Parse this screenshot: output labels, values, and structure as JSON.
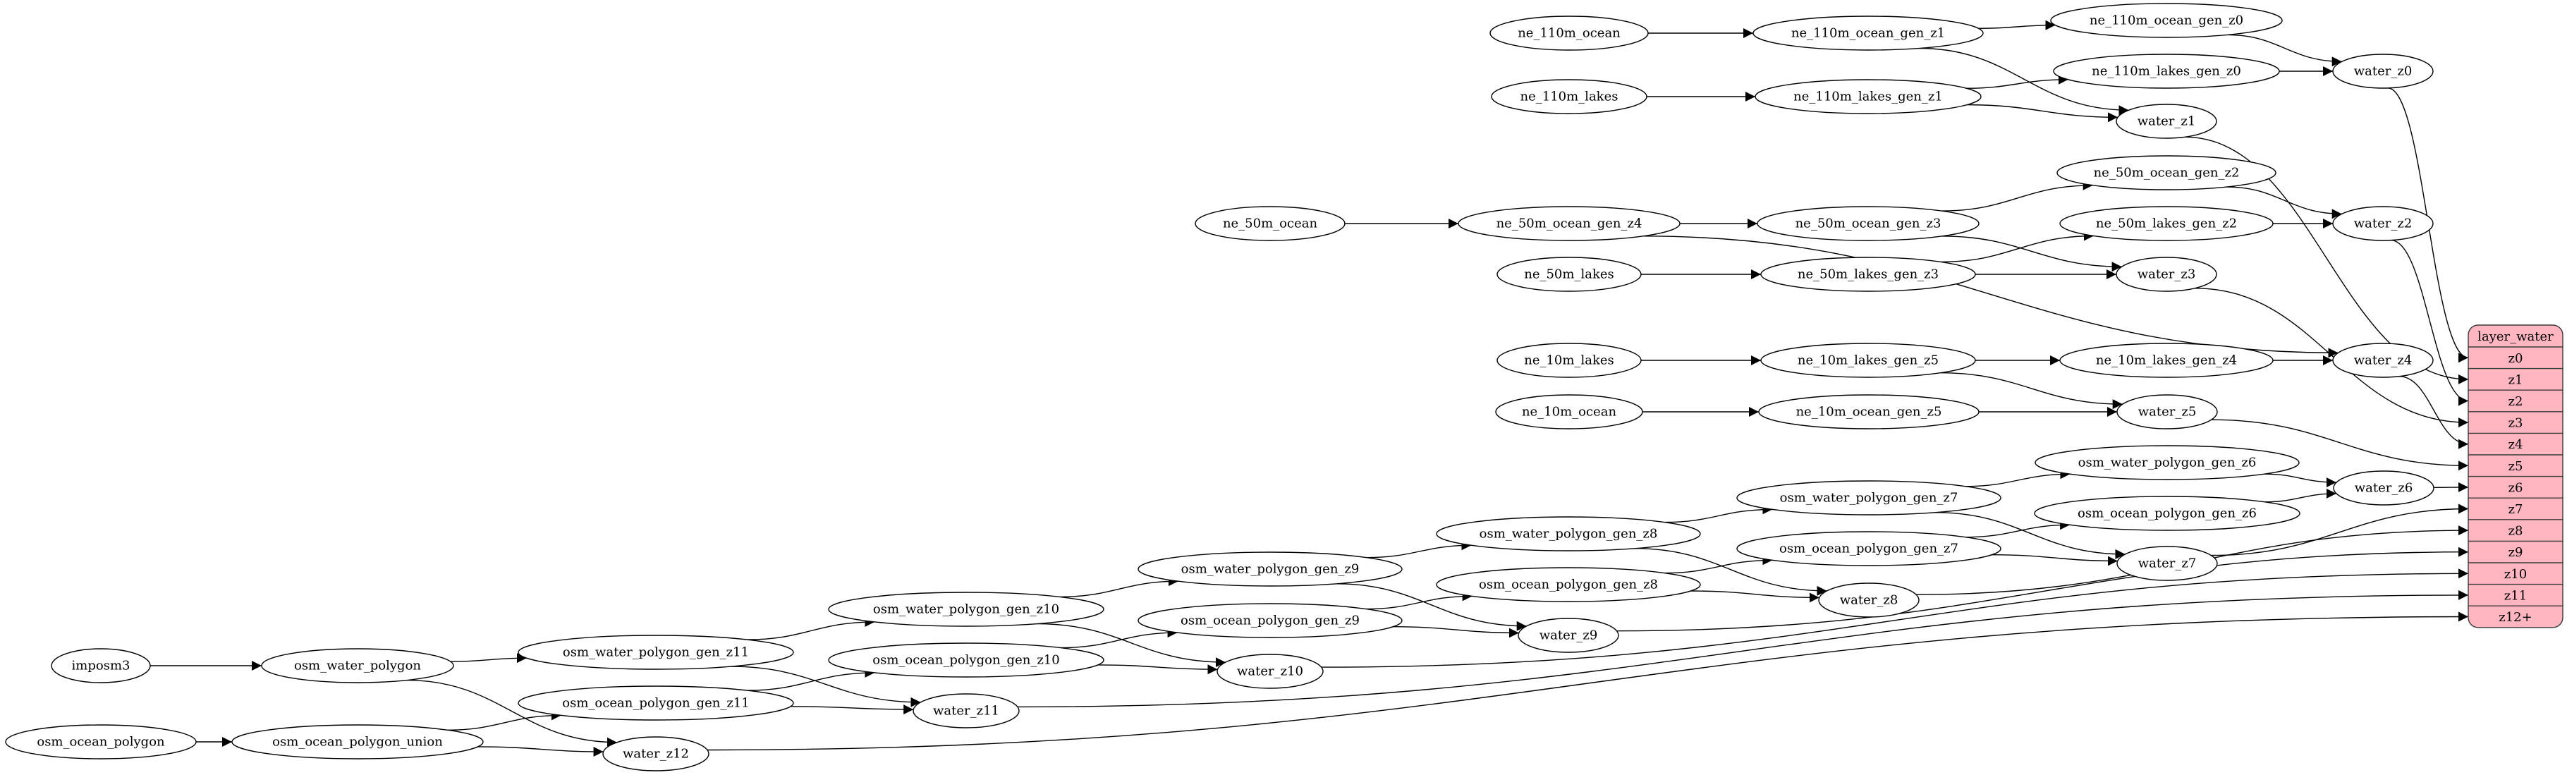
{
  "colors": {
    "table_fill": "#ffb6c1",
    "stroke": "#000000",
    "background": "#ffffff"
  },
  "nodes": [
    "ne_110m_ocean",
    "ne_110m_ocean_gen_z1",
    "ne_110m_ocean_gen_z0",
    "ne_110m_lakes",
    "ne_110m_lakes_gen_z1",
    "ne_110m_lakes_gen_z0",
    "water_z0",
    "water_z1",
    "ne_50m_ocean",
    "ne_50m_ocean_gen_z4",
    "ne_50m_ocean_gen_z3",
    "ne_50m_ocean_gen_z2",
    "ne_50m_lakes",
    "ne_50m_lakes_gen_z3",
    "ne_50m_lakes_gen_z2",
    "water_z2",
    "water_z3",
    "ne_10m_lakes",
    "ne_10m_lakes_gen_z5",
    "ne_10m_lakes_gen_z4",
    "water_z4",
    "ne_10m_ocean",
    "ne_10m_ocean_gen_z5",
    "water_z5",
    "osm_water_polygon_gen_z6",
    "osm_ocean_polygon_gen_z6",
    "water_z6",
    "osm_water_polygon_gen_z7",
    "osm_ocean_polygon_gen_z7",
    "water_z7",
    "osm_water_polygon_gen_z8",
    "osm_ocean_polygon_gen_z8",
    "water_z8",
    "osm_water_polygon_gen_z9",
    "osm_ocean_polygon_gen_z9",
    "water_z9",
    "osm_water_polygon_gen_z10",
    "osm_ocean_polygon_gen_z10",
    "water_z10",
    "osm_water_polygon_gen_z11",
    "osm_ocean_polygon_gen_z11",
    "water_z11",
    "imposm3",
    "osm_water_polygon",
    "osm_ocean_polygon",
    "osm_ocean_polygon_union",
    "water_z12"
  ],
  "table": {
    "title": "layer_water",
    "rows": [
      "z0",
      "z1",
      "z2",
      "z3",
      "z4",
      "z5",
      "z6",
      "z7",
      "z8",
      "z9",
      "z10",
      "z11",
      "z12+"
    ]
  },
  "edges": [
    [
      "ne_110m_ocean",
      "ne_110m_ocean_gen_z1"
    ],
    [
      "ne_110m_ocean_gen_z1",
      "ne_110m_ocean_gen_z0"
    ],
    [
      "ne_110m_ocean_gen_z1",
      "water_z1"
    ],
    [
      "ne_110m_ocean_gen_z0",
      "water_z0"
    ],
    [
      "ne_110m_lakes",
      "ne_110m_lakes_gen_z1"
    ],
    [
      "ne_110m_lakes_gen_z1",
      "ne_110m_lakes_gen_z0"
    ],
    [
      "ne_110m_lakes_gen_z1",
      "water_z1"
    ],
    [
      "ne_110m_lakes_gen_z0",
      "water_z0"
    ],
    [
      "ne_50m_ocean",
      "ne_50m_ocean_gen_z4"
    ],
    [
      "ne_50m_ocean_gen_z4",
      "ne_50m_ocean_gen_z3"
    ],
    [
      "ne_50m_ocean_gen_z4",
      "water_z4"
    ],
    [
      "ne_50m_ocean_gen_z3",
      "ne_50m_ocean_gen_z2"
    ],
    [
      "ne_50m_ocean_gen_z3",
      "water_z3"
    ],
    [
      "ne_50m_ocean_gen_z2",
      "water_z2"
    ],
    [
      "ne_50m_lakes",
      "ne_50m_lakes_gen_z3"
    ],
    [
      "ne_50m_lakes_gen_z3",
      "ne_50m_lakes_gen_z2"
    ],
    [
      "ne_50m_lakes_gen_z3",
      "water_z3"
    ],
    [
      "ne_50m_lakes_gen_z2",
      "water_z2"
    ],
    [
      "ne_10m_lakes",
      "ne_10m_lakes_gen_z5"
    ],
    [
      "ne_10m_lakes_gen_z5",
      "ne_10m_lakes_gen_z4"
    ],
    [
      "ne_10m_lakes_gen_z5",
      "water_z5"
    ],
    [
      "ne_10m_lakes_gen_z4",
      "water_z4"
    ],
    [
      "ne_10m_ocean",
      "ne_10m_ocean_gen_z5"
    ],
    [
      "ne_10m_ocean_gen_z5",
      "water_z5"
    ],
    [
      "osm_water_polygon_gen_z7",
      "osm_water_polygon_gen_z6"
    ],
    [
      "osm_water_polygon_gen_z7",
      "water_z7"
    ],
    [
      "osm_water_polygon_gen_z6",
      "water_z6"
    ],
    [
      "osm_ocean_polygon_gen_z7",
      "osm_ocean_polygon_gen_z6"
    ],
    [
      "osm_ocean_polygon_gen_z7",
      "water_z7"
    ],
    [
      "osm_ocean_polygon_gen_z6",
      "water_z6"
    ],
    [
      "osm_water_polygon_gen_z8",
      "osm_water_polygon_gen_z7"
    ],
    [
      "osm_water_polygon_gen_z8",
      "water_z8"
    ],
    [
      "osm_ocean_polygon_gen_z8",
      "osm_ocean_polygon_gen_z7"
    ],
    [
      "osm_ocean_polygon_gen_z8",
      "water_z8"
    ],
    [
      "osm_water_polygon_gen_z9",
      "osm_water_polygon_gen_z8"
    ],
    [
      "osm_water_polygon_gen_z9",
      "water_z9"
    ],
    [
      "osm_ocean_polygon_gen_z9",
      "osm_ocean_polygon_gen_z8"
    ],
    [
      "osm_ocean_polygon_gen_z9",
      "water_z9"
    ],
    [
      "osm_water_polygon_gen_z10",
      "osm_water_polygon_gen_z9"
    ],
    [
      "osm_water_polygon_gen_z10",
      "water_z10"
    ],
    [
      "osm_ocean_polygon_gen_z10",
      "osm_ocean_polygon_gen_z9"
    ],
    [
      "osm_ocean_polygon_gen_z10",
      "water_z10"
    ],
    [
      "osm_water_polygon_gen_z11",
      "osm_water_polygon_gen_z10"
    ],
    [
      "osm_water_polygon_gen_z11",
      "water_z11"
    ],
    [
      "osm_ocean_polygon_gen_z11",
      "osm_ocean_polygon_gen_z10"
    ],
    [
      "osm_ocean_polygon_gen_z11",
      "water_z11"
    ],
    [
      "imposm3",
      "osm_water_polygon"
    ],
    [
      "osm_water_polygon",
      "osm_water_polygon_gen_z11"
    ],
    [
      "osm_water_polygon",
      "water_z12"
    ],
    [
      "osm_ocean_polygon",
      "osm_ocean_polygon_union"
    ],
    [
      "osm_ocean_polygon_union",
      "osm_ocean_polygon_gen_z11"
    ],
    [
      "osm_ocean_polygon_union",
      "water_z12"
    ],
    [
      "water_z0",
      "layer_water:z0"
    ],
    [
      "water_z1",
      "layer_water:z1"
    ],
    [
      "water_z2",
      "layer_water:z2"
    ],
    [
      "water_z3",
      "layer_water:z3"
    ],
    [
      "water_z4",
      "layer_water:z4"
    ],
    [
      "water_z5",
      "layer_water:z5"
    ],
    [
      "water_z6",
      "layer_water:z6"
    ],
    [
      "water_z7",
      "layer_water:z7"
    ],
    [
      "water_z8",
      "layer_water:z8"
    ],
    [
      "water_z9",
      "layer_water:z9"
    ],
    [
      "water_z10",
      "layer_water:z10"
    ],
    [
      "water_z11",
      "layer_water:z11"
    ],
    [
      "water_z12",
      "layer_water:z12+"
    ]
  ]
}
